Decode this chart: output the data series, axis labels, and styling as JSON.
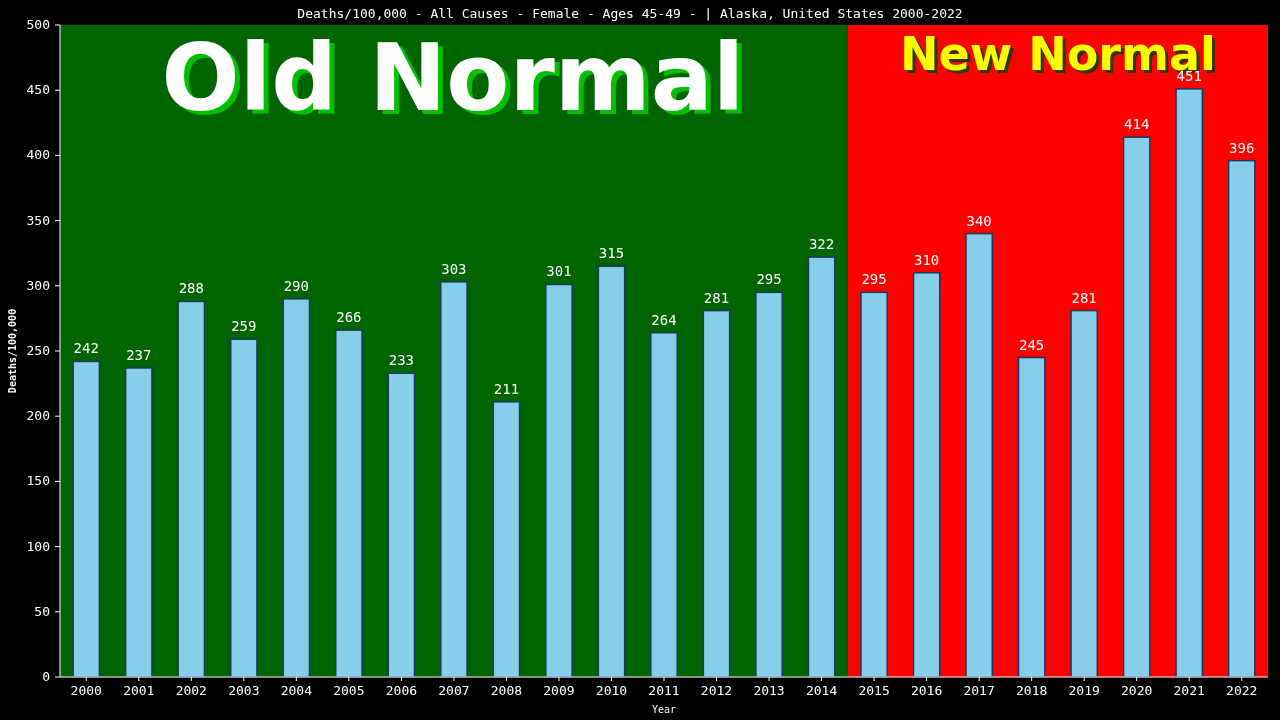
{
  "chart_data": {
    "type": "bar",
    "title": "Deaths/100,000 - All Causes - Female - Ages 45-49 -  | Alaska, United States 2000-2022",
    "xlabel": "Year",
    "ylabel": "Deaths/100,000",
    "categories": [
      "2000",
      "2001",
      "2002",
      "2003",
      "2004",
      "2005",
      "2006",
      "2007",
      "2008",
      "2009",
      "2010",
      "2011",
      "2012",
      "2013",
      "2014",
      "2015",
      "2016",
      "2017",
      "2018",
      "2019",
      "2020",
      "2021",
      "2022"
    ],
    "values": [
      242,
      237,
      288,
      259,
      290,
      266,
      233,
      303,
      211,
      301,
      315,
      264,
      281,
      295,
      322,
      295,
      310,
      340,
      245,
      281,
      414,
      451,
      396
    ],
    "color": "#87ceeb",
    "ylim": [
      0,
      500
    ],
    "yticks": [
      0,
      50,
      100,
      150,
      200,
      250,
      300,
      350,
      400,
      450,
      500
    ],
    "data_labels": true,
    "bands": [
      {
        "axis": "x",
        "from": "2000",
        "to": "2014",
        "label": "Old Normal",
        "color": "#006400"
      },
      {
        "axis": "x",
        "from": "2015",
        "to": "2022",
        "label": "New Normal",
        "color": "#ff0000"
      }
    ]
  }
}
